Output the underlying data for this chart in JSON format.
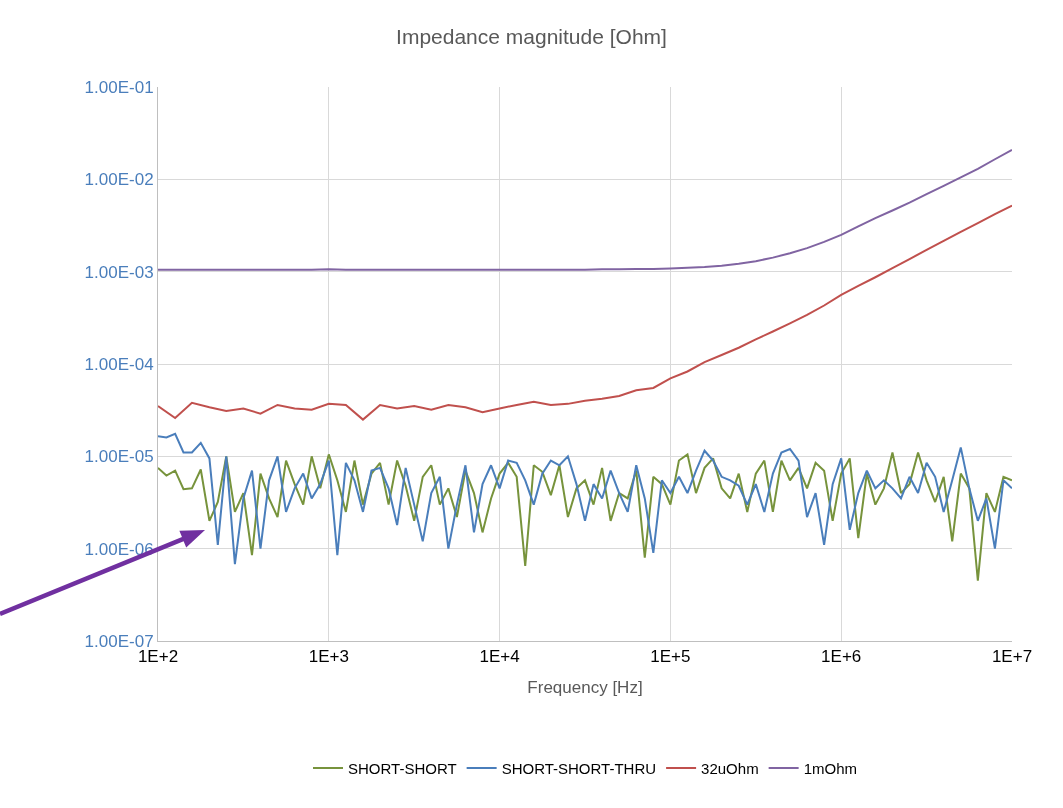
{
  "chart_data": {
    "type": "line",
    "title": "Impedance magnitude [Ohm]",
    "xlabel": "Frequency [Hz]",
    "log": "xy",
    "grid": true,
    "legend": "bottom",
    "marker": "none",
    "line_style": "solid",
    "xlim": [
      100,
      10000000
    ],
    "xticks": [
      {
        "value": 100,
        "label": "1E+2"
      },
      {
        "value": 1000,
        "label": "1E+3"
      },
      {
        "value": 10000,
        "label": "1E+4"
      },
      {
        "value": 100000,
        "label": "1E+5"
      },
      {
        "value": 1000000,
        "label": "1E+6"
      },
      {
        "value": 10000000,
        "label": "1E+7"
      }
    ],
    "ylim": [
      1e-07,
      0.1
    ],
    "yticks": [
      {
        "value": 1e-07,
        "label": "1.00E-07"
      },
      {
        "value": 1e-06,
        "label": "1.00E-06"
      },
      {
        "value": 1e-05,
        "label": "1.00E-05"
      },
      {
        "value": 0.0001,
        "label": "1.00E-04"
      },
      {
        "value": 0.001,
        "label": "1.00E-03"
      },
      {
        "value": 0.01,
        "label": "1.00E-02"
      },
      {
        "value": 0.1,
        "label": "1.00E-01"
      }
    ],
    "x": [
      100,
      112,
      126,
      141,
      158,
      178,
      200,
      224,
      251,
      282,
      316,
      355,
      398,
      447,
      501,
      562,
      631,
      708,
      794,
      891,
      1000,
      1122,
      1259,
      1413,
      1585,
      1778,
      1995,
      2239,
      2512,
      2818,
      3162,
      3548,
      3981,
      4467,
      5012,
      5623,
      6310,
      7079,
      7943,
      8913,
      10000,
      11220,
      12589,
      14125,
      15849,
      17783,
      19953,
      22387,
      25119,
      28184,
      31623,
      35481,
      39811,
      44668,
      50119,
      56234,
      63096,
      70795,
      79433,
      89125,
      100000,
      112202,
      125893,
      141254,
      158489,
      177828,
      199526,
      223872,
      251189,
      281838,
      316228,
      354813,
      398107,
      446684,
      501187,
      562341,
      630957,
      707946,
      794328,
      891251,
      1000000,
      1122018,
      1258925,
      1412538,
      1584893,
      1778279,
      1995262,
      2238721,
      2511886,
      2818383,
      3162278,
      3548134,
      3981072,
      4466836,
      5011872,
      5623413,
      6309573,
      7079458,
      7943282,
      8912509,
      10000000
    ],
    "series": [
      {
        "name": "SHORT-SHORT",
        "color": "#77933c",
        "values": [
          7.5e-06,
          6.2e-06,
          7e-06,
          4.4e-06,
          4.5e-06,
          7.2e-06,
          2e-06,
          3.2e-06,
          1e-05,
          2.5e-06,
          4e-06,
          8.5e-07,
          6.5e-06,
          3.5e-06,
          2.2e-06,
          9e-06,
          5e-06,
          3e-06,
          1e-05,
          4.5e-06,
          1.05e-05,
          5.5e-06,
          2.5e-06,
          9e-06,
          3e-06,
          6.5e-06,
          8.5e-06,
          3e-06,
          9e-06,
          4.8e-06,
          2e-06,
          6e-06,
          8e-06,
          3e-06,
          4.5e-06,
          2.2e-06,
          7e-06,
          4e-06,
          1.5e-06,
          3.5e-06,
          6.5e-06,
          8.5e-06,
          6e-06,
          6.5e-07,
          8e-06,
          6.8e-06,
          3.8e-06,
          8e-06,
          2.2e-06,
          4.5e-06,
          5.5e-06,
          3e-06,
          7.5e-06,
          2e-06,
          4e-06,
          3.5e-06,
          7e-06,
          8e-07,
          6e-06,
          5e-06,
          3e-06,
          9e-06,
          1.05e-05,
          4e-06,
          7.5e-06,
          9.5e-06,
          4.5e-06,
          3.5e-06,
          6.5e-06,
          2.5e-06,
          6.5e-06,
          9e-06,
          2.5e-06,
          9e-06,
          5.5e-06,
          7.5e-06,
          4.5e-06,
          8.5e-06,
          7e-06,
          2e-06,
          6.5e-06,
          9.5e-06,
          1.3e-06,
          6.5e-06,
          3e-06,
          4.5e-06,
          1.1e-05,
          4e-06,
          5e-06,
          1.1e-05,
          5.5e-06,
          3.2e-06,
          6e-06,
          1.2e-06,
          6.5e-06,
          4.5e-06,
          4.5e-07,
          4e-06,
          2.5e-06,
          6e-06,
          5.5e-06
        ]
      },
      {
        "name": "SHORT-SHORT-THRU",
        "color": "#4a7ebb",
        "values": [
          1.65e-05,
          1.6e-05,
          1.75e-05,
          1.1e-05,
          1.1e-05,
          1.4e-05,
          9.5e-06,
          1.1e-06,
          1e-05,
          6.8e-07,
          3.5e-06,
          7e-06,
          1e-06,
          5.5e-06,
          1e-05,
          2.5e-06,
          4.5e-06,
          6.5e-06,
          3.5e-06,
          5e-06,
          9e-06,
          8.5e-07,
          8.5e-06,
          5.5e-06,
          2.5e-06,
          7e-06,
          7.5e-06,
          4.5e-06,
          1.8e-06,
          7.5e-06,
          3e-06,
          1.2e-06,
          4e-06,
          6e-06,
          1e-06,
          3e-06,
          8e-06,
          1.5e-06,
          5e-06,
          8e-06,
          4.5e-06,
          9e-06,
          8.5e-06,
          5.5e-06,
          3e-06,
          6.5e-06,
          9e-06,
          8e-06,
          1e-05,
          5e-06,
          2e-06,
          5e-06,
          3.5e-06,
          7e-06,
          4e-06,
          2.5e-06,
          8e-06,
          3.5e-06,
          9e-07,
          5.5e-06,
          4e-06,
          6e-06,
          4e-06,
          7e-06,
          1.15e-05,
          9e-06,
          6e-06,
          5.5e-06,
          4.8e-06,
          3e-06,
          5e-06,
          2.5e-06,
          6.5e-06,
          1.1e-05,
          1.2e-05,
          9e-06,
          2.2e-06,
          4e-06,
          1.1e-06,
          5e-06,
          9.5e-06,
          1.6e-06,
          4e-06,
          7e-06,
          4.5e-06,
          5.5e-06,
          4.5e-06,
          3.5e-06,
          6e-06,
          4e-06,
          8.5e-06,
          6e-06,
          2.5e-06,
          5.5e-06,
          1.25e-05,
          4.5e-06,
          2e-06,
          3.5e-06,
          1e-06,
          5.5e-06,
          4.5e-06
        ]
      },
      {
        "name": "32uOhm",
        "color": "#c0504d",
        "x": [
          100,
          126,
          158,
          200,
          251,
          316,
          398,
          501,
          631,
          794,
          1000,
          1259,
          1585,
          1995,
          2512,
          3162,
          3981,
          5012,
          6310,
          7943,
          10000,
          12589,
          15849,
          19953,
          25119,
          31623,
          39811,
          50119,
          63096,
          79433,
          100000,
          125893,
          158489,
          199526,
          251189,
          316228,
          398107,
          501187,
          630957,
          794328,
          1000000,
          1258925,
          1584893,
          1995262,
          2511886,
          3162278,
          3981072,
          5011872,
          6309573,
          7943282,
          10000000
        ],
        "values": [
          3.5e-05,
          2.6e-05,
          3.8e-05,
          3.4e-05,
          3.1e-05,
          3.3e-05,
          2.9e-05,
          3.6e-05,
          3.3e-05,
          3.2e-05,
          3.7e-05,
          3.6e-05,
          2.5e-05,
          3.6e-05,
          3.3e-05,
          3.5e-05,
          3.2e-05,
          3.6e-05,
          3.4e-05,
          3e-05,
          3.3e-05,
          3.6e-05,
          3.9e-05,
          3.6e-05,
          3.7e-05,
          4e-05,
          4.2e-05,
          4.5e-05,
          5.2e-05,
          5.5e-05,
          7e-05,
          8.3e-05,
          0.000105,
          0.000125,
          0.00015,
          0.000185,
          0.000225,
          0.000275,
          0.00034,
          0.00043,
          0.00056,
          0.0007,
          0.00087,
          0.00109,
          0.00137,
          0.00172,
          0.00215,
          0.0027,
          0.00335,
          0.0042,
          0.0052
        ]
      },
      {
        "name": "1mOhm",
        "color": "#8064a2",
        "x": [
          100,
          126,
          158,
          200,
          251,
          316,
          398,
          501,
          631,
          794,
          1000,
          1259,
          1585,
          1995,
          2512,
          3162,
          3981,
          5012,
          6310,
          7943,
          10000,
          12589,
          15849,
          19953,
          25119,
          31623,
          39811,
          50119,
          63096,
          79433,
          100000,
          125893,
          158489,
          199526,
          251189,
          316228,
          398107,
          501187,
          630957,
          794328,
          1000000,
          1258925,
          1584893,
          1995262,
          2511886,
          3162278,
          3981072,
          5011872,
          6309573,
          7943282,
          10000000
        ],
        "values": [
          0.00105,
          0.00105,
          0.00105,
          0.00105,
          0.00105,
          0.00105,
          0.00105,
          0.00105,
          0.00105,
          0.00105,
          0.00106,
          0.00105,
          0.00105,
          0.00105,
          0.00105,
          0.00105,
          0.00105,
          0.00105,
          0.00105,
          0.00105,
          0.00105,
          0.00105,
          0.00105,
          0.00105,
          0.00105,
          0.00105,
          0.00106,
          0.00106,
          0.00107,
          0.00107,
          0.00108,
          0.0011,
          0.00112,
          0.00116,
          0.00122,
          0.0013,
          0.00142,
          0.00158,
          0.0018,
          0.0021,
          0.0025,
          0.0031,
          0.0038,
          0.0046,
          0.0056,
          0.0069,
          0.0085,
          0.0105,
          0.013,
          0.0165,
          0.0208
        ]
      }
    ]
  }
}
